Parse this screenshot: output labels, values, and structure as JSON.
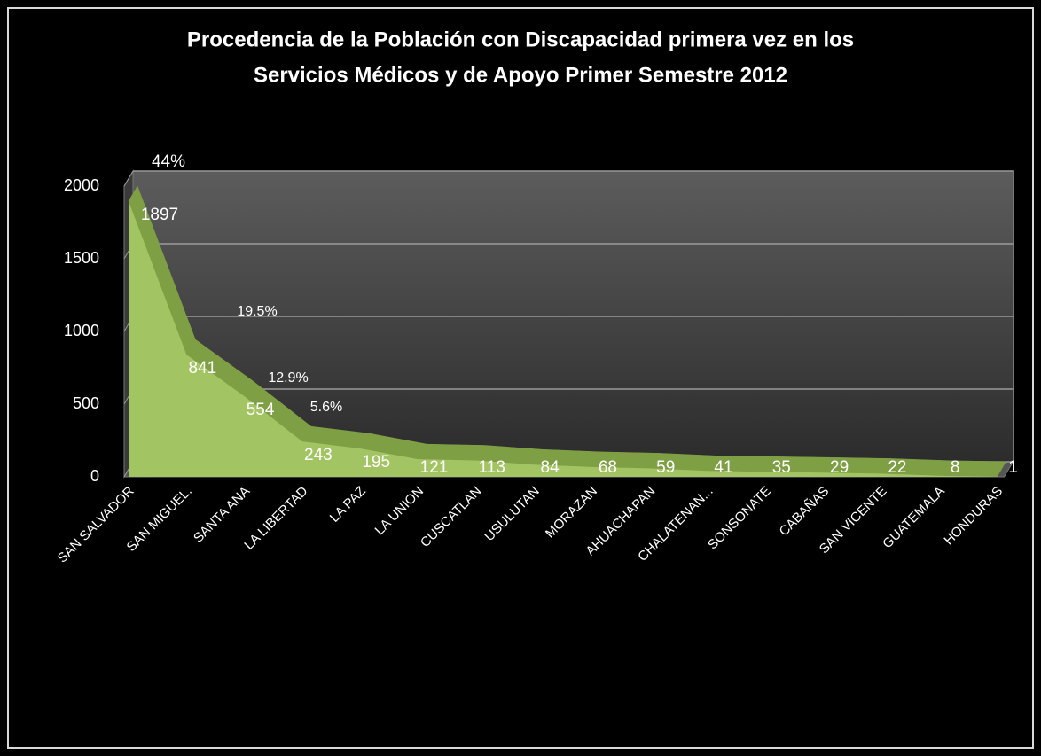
{
  "chart_data": {
    "type": "area3d",
    "title": [
      "Procedencia de la Población con Discapacidad primera vez en los",
      "Servicios Médicos y de Apoyo Primer Semestre 2012"
    ],
    "categories": [
      "SAN SALVADOR",
      "SAN MIGUEL.",
      "SANTA ANA",
      "LA LIBERTAD",
      "LA PAZ",
      "LA UNION",
      "CUSCATLAN",
      "USULUTAN",
      "MORAZAN",
      "AHUACHAPAN",
      "CHALATENAN...",
      "SONSONATE",
      "CABAÑAS",
      "SAN VICENTE",
      "GUATEMALA",
      "HONDURAS"
    ],
    "values": [
      1897,
      841,
      554,
      243,
      195,
      121,
      113,
      84,
      68,
      59,
      41,
      35,
      29,
      22,
      8,
      1
    ],
    "color": "#a3c463",
    "ylim": [
      0,
      2000
    ],
    "yticks": [
      0,
      500,
      1000,
      1500,
      2000
    ],
    "grid": true,
    "annotations": [
      "44%",
      "19.5%",
      "12.9%",
      "5.6%"
    ]
  }
}
